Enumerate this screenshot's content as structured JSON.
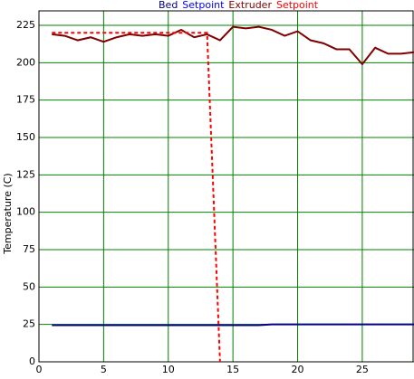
{
  "chart_data": {
    "type": "line",
    "y_label": "Temperature (C)",
    "x": [
      1,
      2,
      3,
      4,
      5,
      6,
      7,
      8,
      9,
      10,
      11,
      12,
      13,
      14,
      15,
      16,
      17,
      18,
      19,
      20,
      21,
      22,
      23,
      24,
      25,
      26,
      27,
      28,
      29
    ],
    "series": [
      {
        "name": "Bed",
        "color": "#000080",
        "dash": false,
        "values": [
          24.5,
          24.5,
          24.5,
          24.5,
          24.5,
          24.5,
          24.5,
          24.5,
          24.5,
          24.5,
          24.5,
          24.5,
          24.5,
          24.5,
          24.5,
          24.5,
          24.5,
          25,
          25,
          25,
          25,
          25,
          25,
          25,
          25,
          25,
          25,
          25,
          25
        ]
      },
      {
        "name": "Setpoint",
        "color": "#0000ff",
        "dash": true,
        "values": [
          null,
          null,
          null,
          null,
          null,
          null,
          null,
          null,
          null,
          null,
          null,
          null,
          null,
          null,
          null,
          null,
          null,
          null,
          null,
          null,
          null,
          null,
          null,
          null,
          null,
          null,
          null,
          null,
          null
        ]
      },
      {
        "name": "Extruder",
        "color": "#800000",
        "dash": false,
        "values": [
          219,
          218,
          215,
          217,
          214,
          217,
          219,
          218,
          219,
          218,
          222,
          217,
          219,
          215,
          224,
          223,
          224,
          222,
          218,
          221,
          215,
          213,
          209,
          209,
          199,
          210,
          206,
          206,
          207
        ]
      },
      {
        "name": "Setpoint",
        "color": "#ff0000",
        "dash": true,
        "values": [
          220,
          220,
          220,
          220,
          220,
          220,
          220,
          220,
          220,
          220,
          220,
          220,
          220,
          0,
          null,
          null,
          null,
          null,
          null,
          null,
          null,
          null,
          null,
          null,
          null,
          null,
          null,
          null,
          null
        ]
      }
    ],
    "xlim": [
      0,
      29
    ],
    "ylim": [
      0,
      225
    ],
    "xticks": [
      0,
      5,
      10,
      15,
      20,
      25
    ],
    "yticks": [
      0,
      25,
      50,
      75,
      100,
      125,
      150,
      175,
      200,
      225
    ],
    "grid": true,
    "grid_color": "#008000"
  }
}
